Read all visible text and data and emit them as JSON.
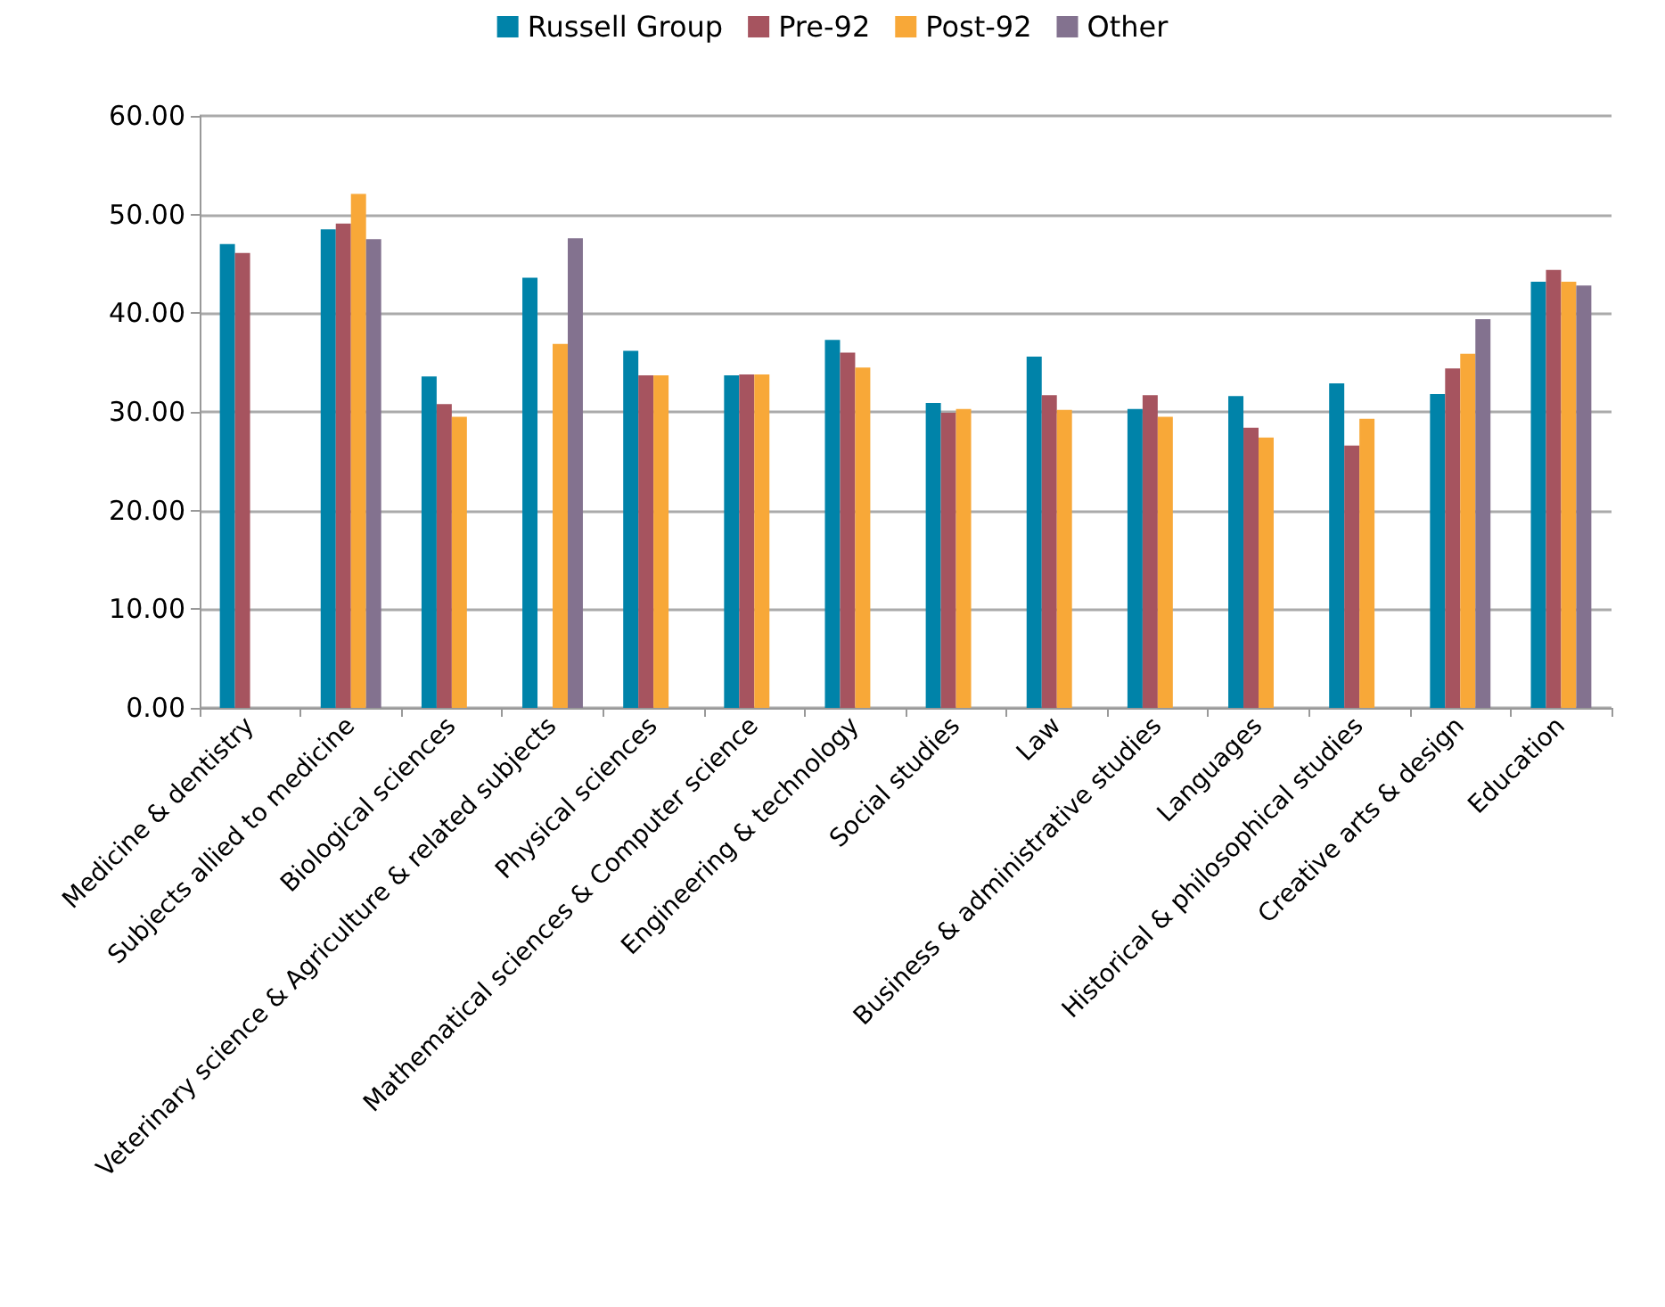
{
  "chart_data": {
    "type": "bar",
    "categories": [
      "Medicine & dentistry",
      "Subjects allied to medicine",
      "Biological sciences",
      "Veterinary science & Agriculture & related subjects",
      "Physical sciences",
      "Mathematical sciences & Computer science",
      "Engineering & technology",
      "Social studies",
      "Law",
      "Business & administrative studies",
      "Languages",
      "Historical & philosophical studies",
      "Creative arts & design",
      "Education"
    ],
    "series": [
      {
        "name": "Russell Group",
        "color": "#0083a9",
        "values": [
          47.0,
          48.5,
          33.6,
          43.6,
          36.2,
          33.7,
          37.3,
          30.9,
          35.6,
          30.3,
          31.6,
          32.9,
          31.8,
          43.2
        ]
      },
      {
        "name": "Pre-92",
        "color": "#a6545f",
        "values": [
          46.1,
          49.1,
          30.8,
          null,
          33.7,
          33.8,
          36.0,
          29.9,
          31.7,
          31.7,
          28.4,
          26.6,
          34.4,
          44.4
        ]
      },
      {
        "name": "Post-92",
        "color": "#f8a838",
        "values": [
          null,
          52.1,
          29.5,
          36.9,
          33.7,
          33.8,
          34.5,
          30.3,
          30.2,
          29.5,
          27.4,
          29.3,
          35.9,
          43.2
        ]
      },
      {
        "name": "Other",
        "color": "#83728f",
        "values": [
          null,
          47.5,
          null,
          47.6,
          null,
          null,
          null,
          null,
          null,
          null,
          null,
          null,
          39.4,
          42.8
        ]
      }
    ],
    "ylim": [
      0,
      60
    ],
    "yticks": [
      {
        "value": 0,
        "label": "0.00"
      },
      {
        "value": 10,
        "label": "10.00"
      },
      {
        "value": 20,
        "label": "20.00"
      },
      {
        "value": 30,
        "label": "30.00"
      },
      {
        "value": 40,
        "label": "40.00"
      },
      {
        "value": 50,
        "label": "50.00"
      },
      {
        "value": 60,
        "label": "60.00"
      }
    ],
    "grid": "y",
    "legend": "top"
  }
}
